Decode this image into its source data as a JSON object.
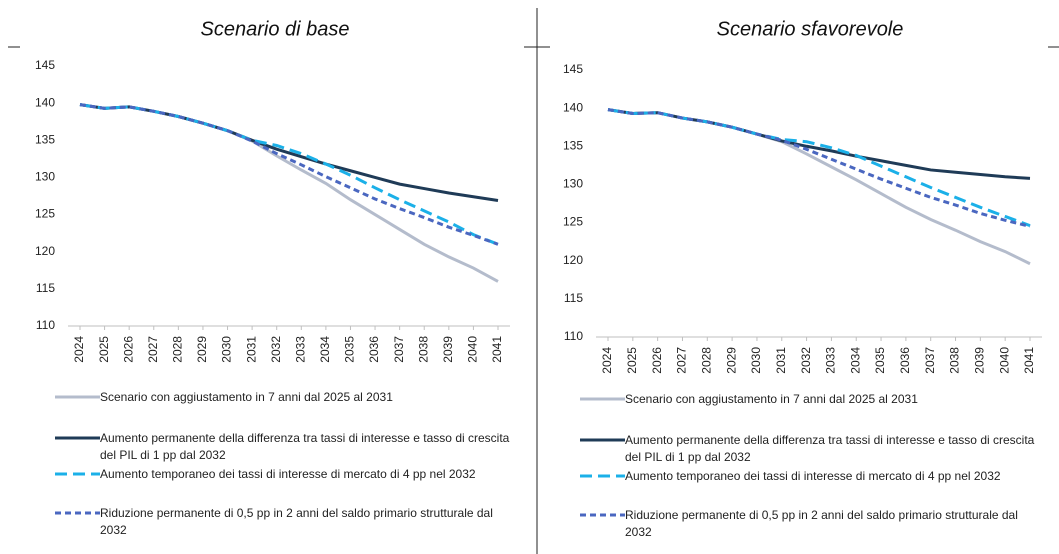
{
  "chart_data": [
    {
      "type": "line",
      "title": "Scenario di base",
      "categories": [
        "2024",
        "2025",
        "2026",
        "2027",
        "2028",
        "2029",
        "2030",
        "2031",
        "2032",
        "2033",
        "2034",
        "2035",
        "2036",
        "2037",
        "2038",
        "2039",
        "2040",
        "2041"
      ],
      "ylim": [
        110,
        145
      ],
      "yticks": [
        110,
        115,
        120,
        125,
        130,
        135,
        140,
        145
      ],
      "series": [
        {
          "name": "Scenario con aggiustamento in 7 anni dal 2025 al 2031",
          "color": "#b4bccc",
          "linestyle": "solid",
          "values": [
            139.8,
            139.3,
            139.5,
            138.9,
            138.2,
            137.3,
            136.3,
            134.9,
            132.9,
            131.0,
            129.2,
            127.0,
            125.0,
            123.0,
            121.0,
            119.3,
            117.8,
            116.0
          ]
        },
        {
          "name": "Aumento permanente della differenza tra tassi di interesse e tasso di crescita del PIL di 1 pp dal 2032",
          "color": "#1f3b57",
          "linestyle": "solid",
          "values": [
            139.8,
            139.3,
            139.5,
            138.9,
            138.2,
            137.3,
            136.3,
            135.0,
            133.8,
            132.8,
            131.8,
            130.9,
            130.0,
            129.1,
            128.5,
            127.9,
            127.4,
            126.9
          ]
        },
        {
          "name": "Aumento temporaneo dei tassi di interesse di mercato di 4 pp nel 2032",
          "color": "#1bb0e8",
          "linestyle": "dashed",
          "values": [
            139.8,
            139.3,
            139.5,
            138.9,
            138.2,
            137.3,
            136.3,
            135.0,
            134.3,
            133.2,
            131.8,
            130.3,
            128.6,
            127.0,
            125.5,
            124.0,
            122.3,
            121.0
          ]
        },
        {
          "name": "Riduzione permanente di 0,5 pp in 2 anni del saldo primario strutturale dal 2032",
          "color": "#4a67c0",
          "linestyle": "dotted",
          "values": [
            139.8,
            139.3,
            139.5,
            138.9,
            138.2,
            137.3,
            136.3,
            134.9,
            133.2,
            131.7,
            130.1,
            128.6,
            127.1,
            125.8,
            124.6,
            123.3,
            122.2,
            121.0
          ]
        }
      ]
    },
    {
      "type": "line",
      "title": "Scenario sfavorevole",
      "categories": [
        "2024",
        "2025",
        "2026",
        "2027",
        "2028",
        "2029",
        "2030",
        "2031",
        "2032",
        "2033",
        "2034",
        "2035",
        "2036",
        "2037",
        "2038",
        "2039",
        "2040",
        "2041"
      ],
      "ylim": [
        110,
        145
      ],
      "yticks": [
        110,
        115,
        120,
        125,
        130,
        135,
        140,
        145
      ],
      "series": [
        {
          "name": "Scenario con aggiustamento in 7 anni dal 2025 al 2031",
          "color": "#b4bccc",
          "linestyle": "solid",
          "values": [
            139.8,
            139.3,
            139.4,
            138.7,
            138.2,
            137.5,
            136.6,
            135.6,
            134.0,
            132.3,
            130.6,
            128.8,
            127.0,
            125.4,
            124.0,
            122.5,
            121.2,
            119.6
          ]
        },
        {
          "name": "Aumento permanente della differenza tra tassi di interesse e tasso di crescita del PIL di 1 pp dal 2032",
          "color": "#1f3b57",
          "linestyle": "solid",
          "values": [
            139.8,
            139.3,
            139.4,
            138.7,
            138.2,
            137.5,
            136.6,
            135.7,
            135.0,
            134.4,
            133.7,
            133.1,
            132.5,
            131.9,
            131.6,
            131.3,
            131.0,
            130.8
          ]
        },
        {
          "name": "Aumento temporaneo dei tassi di interesse di mercato di 4 pp nel 2032",
          "color": "#1bb0e8",
          "linestyle": "dashed",
          "values": [
            139.8,
            139.3,
            139.4,
            138.7,
            138.2,
            137.5,
            136.6,
            135.9,
            135.6,
            134.8,
            133.8,
            132.4,
            131.0,
            129.6,
            128.3,
            127.0,
            125.8,
            124.6
          ]
        },
        {
          "name": "Riduzione permanente di 0,5 pp in 2 anni del saldo primario strutturale dal 2032",
          "color": "#4a67c0",
          "linestyle": "dotted",
          "values": [
            139.8,
            139.3,
            139.4,
            138.7,
            138.2,
            137.5,
            136.6,
            135.8,
            134.6,
            133.3,
            132.0,
            130.7,
            129.5,
            128.3,
            127.3,
            126.2,
            125.3,
            124.5
          ]
        }
      ]
    }
  ]
}
